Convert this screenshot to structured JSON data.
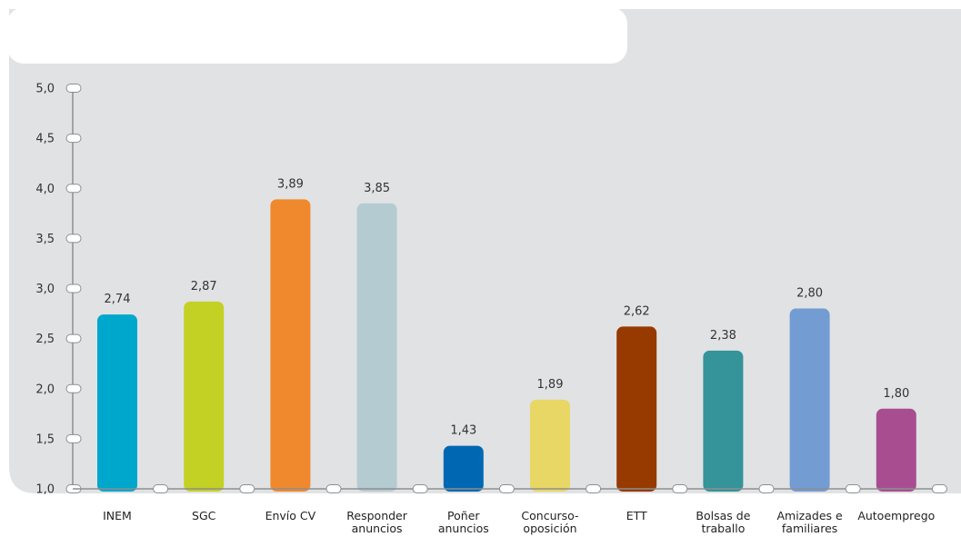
{
  "chart_data": {
    "type": "bar",
    "categories": [
      [
        "INEM"
      ],
      [
        "SGC"
      ],
      [
        "Envío CV"
      ],
      [
        "Responder",
        "anuncios"
      ],
      [
        "Poñer",
        "anuncios"
      ],
      [
        "Concurso-",
        "oposición"
      ],
      [
        "ETT"
      ],
      [
        "Bolsas de",
        "traballo"
      ],
      [
        "Amizades e",
        "familiares"
      ],
      [
        "Autoemprego"
      ]
    ],
    "values": [
      2.74,
      2.87,
      3.89,
      3.85,
      1.43,
      1.89,
      2.62,
      2.38,
      2.8,
      1.8
    ],
    "value_labels": [
      "2,74",
      "2,87",
      "3,89",
      "3,85",
      "1,43",
      "1,89",
      "2,62",
      "2,38",
      "2,80",
      "1,80"
    ],
    "bar_colors": [
      "#00a7cc",
      "#c3d124",
      "#f0892e",
      "#b4cbd1",
      "#0068b3",
      "#e8d764",
      "#963a00",
      "#34949a",
      "#739cd2",
      "#a84e90"
    ],
    "ylim": [
      1.0,
      5.0
    ],
    "yticks": [
      "1,0",
      "1,5",
      "2,0",
      "2,5",
      "3,0",
      "3,5",
      "4,0",
      "4,5",
      "5,0"
    ],
    "title": "",
    "xlabel": "",
    "ylabel": "",
    "grid": false,
    "panel_color": "#e1e2e4"
  }
}
